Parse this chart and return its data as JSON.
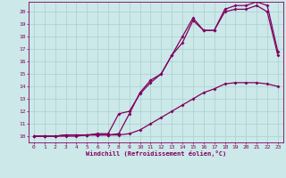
{
  "xlabel": "Windchill (Refroidissement éolien,°C)",
  "background_color": "#cce8e8",
  "line_color": "#800060",
  "grid_color": "#a8d0d0",
  "yticks": [
    10,
    11,
    12,
    13,
    14,
    15,
    16,
    17,
    18,
    19,
    20
  ],
  "xticks": [
    0,
    1,
    2,
    3,
    4,
    5,
    6,
    7,
    8,
    9,
    10,
    11,
    12,
    13,
    14,
    15,
    16,
    17,
    18,
    19,
    20,
    21,
    22,
    23
  ],
  "line1_x": [
    0,
    1,
    2,
    3,
    4,
    5,
    6,
    7,
    8,
    9,
    10,
    11,
    12,
    13,
    14,
    15,
    16,
    17,
    18,
    19,
    20,
    21,
    22,
    23
  ],
  "line1_y": [
    10.0,
    10.0,
    10.0,
    10.0,
    10.0,
    10.1,
    10.1,
    10.1,
    10.1,
    10.2,
    10.5,
    11.0,
    11.5,
    12.0,
    12.5,
    13.0,
    13.5,
    13.8,
    14.2,
    14.3,
    14.3,
    14.3,
    14.2,
    14.0
  ],
  "line2_x": [
    0,
    1,
    2,
    3,
    4,
    5,
    6,
    7,
    8,
    9,
    10,
    11,
    12,
    13,
    14,
    15,
    16,
    17,
    18,
    19,
    20,
    21,
    22,
    23
  ],
  "line2_y": [
    10.0,
    10.0,
    10.0,
    10.1,
    10.1,
    10.1,
    10.2,
    10.2,
    11.8,
    12.0,
    13.4,
    14.3,
    15.0,
    16.5,
    17.5,
    19.3,
    18.5,
    18.5,
    20.0,
    20.2,
    20.2,
    20.5,
    20.0,
    16.5
  ],
  "line3_x": [
    0,
    1,
    2,
    3,
    4,
    5,
    6,
    7,
    8,
    9,
    10,
    11,
    12,
    13,
    14,
    15,
    16,
    17,
    18,
    19,
    20,
    21,
    22,
    23
  ],
  "line3_y": [
    10.0,
    10.0,
    10.0,
    10.1,
    10.1,
    10.1,
    10.1,
    10.1,
    10.2,
    11.8,
    13.5,
    14.5,
    15.0,
    16.5,
    18.0,
    19.5,
    18.5,
    18.5,
    20.2,
    20.5,
    20.5,
    20.8,
    20.5,
    16.8
  ],
  "xmin": -0.5,
  "xmax": 23.5,
  "ymin": 9.5,
  "ymax": 20.8
}
